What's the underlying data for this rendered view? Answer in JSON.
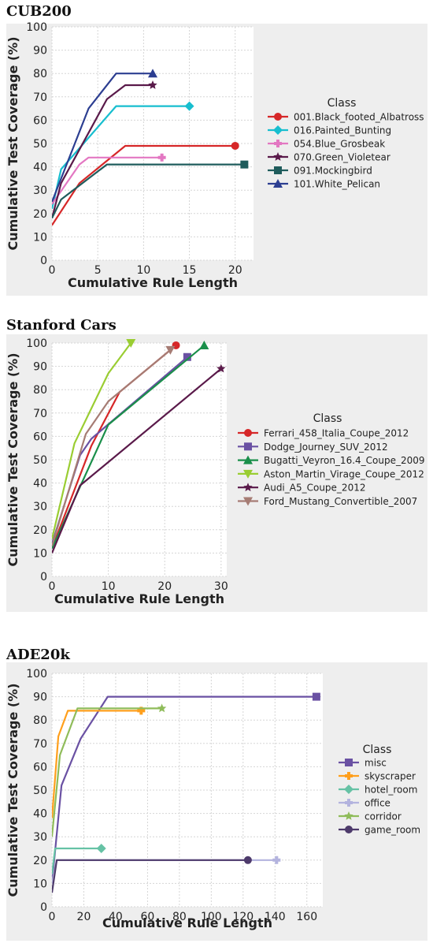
{
  "chart_data": [
    {
      "type": "line",
      "panel_title": "CUB200",
      "xlabel": "Cumulative Rule Length",
      "ylabel": "Cumulative Test Coverage (%)",
      "xlim": [
        0,
        22
      ],
      "ylim": [
        0,
        100
      ],
      "xticks": [
        0,
        5,
        10,
        15,
        20
      ],
      "yticks": [
        0,
        10,
        20,
        30,
        40,
        50,
        60,
        70,
        80,
        90,
        100
      ],
      "grid": true,
      "legend_title": "Class",
      "legend_position": "right",
      "series": [
        {
          "name": "001.Black_footed_Albatross",
          "color": "#d62728",
          "marker": "circle",
          "x": [
            0,
            3,
            8,
            20
          ],
          "y": [
            15,
            33,
            49,
            49
          ]
        },
        {
          "name": "016.Painted_Bunting",
          "color": "#17becf",
          "marker": "diamond",
          "x": [
            0,
            1,
            7,
            15
          ],
          "y": [
            22,
            39,
            66,
            66
          ]
        },
        {
          "name": "054.Blue_Grosbeak",
          "color": "#e377c2",
          "marker": "plus",
          "x": [
            0,
            3,
            4,
            12
          ],
          "y": [
            24,
            41,
            44,
            44
          ]
        },
        {
          "name": "070.Green_Violetear",
          "color": "#5a1a4a",
          "marker": "star",
          "x": [
            0,
            1,
            6,
            8,
            11
          ],
          "y": [
            18,
            33,
            69,
            75,
            75
          ]
        },
        {
          "name": "091.Mockingbird",
          "color": "#1f5c5c",
          "marker": "square",
          "x": [
            0,
            1,
            6,
            21
          ],
          "y": [
            18,
            26,
            41,
            41
          ]
        },
        {
          "name": "101.White_Pelican",
          "color": "#2c3e91",
          "marker": "triangle",
          "x": [
            0,
            4,
            7,
            11
          ],
          "y": [
            25,
            65,
            80,
            80
          ]
        }
      ]
    },
    {
      "type": "line",
      "panel_title": "Stanford Cars",
      "xlabel": "Cumulative Rule Length",
      "ylabel": "Cumulative Test Coverage (%)",
      "xlim": [
        0,
        31
      ],
      "ylim": [
        0,
        100
      ],
      "xticks": [
        0,
        10,
        20,
        30
      ],
      "yticks": [
        0,
        10,
        20,
        30,
        40,
        50,
        60,
        70,
        80,
        90,
        100
      ],
      "grid": true,
      "legend_title": "Class",
      "legend_position": "right",
      "series": [
        {
          "name": "Ferrari_458_Italia_Coupe_2012",
          "color": "#d62728",
          "marker": "circle",
          "x": [
            0,
            7,
            12,
            22
          ],
          "y": [
            12,
            56,
            79,
            99
          ]
        },
        {
          "name": "Dodge_Journey_SUV_2012",
          "color": "#6a51a3",
          "marker": "square",
          "x": [
            0,
            5,
            7,
            24
          ],
          "y": [
            14,
            52,
            59,
            94
          ]
        },
        {
          "name": "Bugatti_Veyron_16.4_Coupe_2009",
          "color": "#1a8f4a",
          "marker": "triangle",
          "x": [
            0,
            10,
            27
          ],
          "y": [
            12,
            65,
            99
          ]
        },
        {
          "name": "Aston_Martin_Virage_Coupe_2012",
          "color": "#9acd32",
          "marker": "tri_down",
          "x": [
            0,
            4,
            10,
            14
          ],
          "y": [
            16,
            57,
            87,
            100
          ]
        },
        {
          "name": "Audi_A5_Coupe_2012",
          "color": "#5a1a4a",
          "marker": "star",
          "x": [
            0,
            5,
            30
          ],
          "y": [
            10,
            39,
            89
          ]
        },
        {
          "name": "Ford_Mustang_Convertible_2007",
          "color": "#a67c74",
          "marker": "tri_down",
          "x": [
            0,
            6,
            10,
            21
          ],
          "y": [
            13,
            61,
            75,
            97
          ]
        }
      ]
    },
    {
      "type": "line",
      "panel_title": "ADE20k",
      "xlabel": "Cumulative Rule Length",
      "ylabel": "Cumulative Test Coverage (%)",
      "xlim": [
        0,
        170
      ],
      "ylim": [
        0,
        100
      ],
      "xticks": [
        0,
        20,
        40,
        60,
        80,
        100,
        120,
        140,
        160
      ],
      "yticks": [
        0,
        10,
        20,
        30,
        40,
        50,
        60,
        70,
        80,
        90,
        100
      ],
      "grid": true,
      "legend_title": "Class",
      "legend_position": "right",
      "series": [
        {
          "name": "misc",
          "color": "#6a51a3",
          "marker": "square",
          "x": [
            0,
            6,
            18,
            35,
            166
          ],
          "y": [
            10,
            52,
            72,
            90,
            90
          ]
        },
        {
          "name": "skyscraper",
          "color": "#ff9f1c",
          "marker": "plus",
          "x": [
            0,
            4,
            10,
            56
          ],
          "y": [
            38,
            73,
            84,
            84
          ]
        },
        {
          "name": "hotel_room",
          "color": "#66c2a5",
          "marker": "diamond",
          "x": [
            0,
            2,
            31
          ],
          "y": [
            14,
            25,
            25
          ]
        },
        {
          "name": "office",
          "color": "#b3b3de",
          "marker": "plus",
          "x": [
            0,
            3,
            141
          ],
          "y": [
            10,
            20,
            20
          ]
        },
        {
          "name": "corridor",
          "color": "#8fbc5a",
          "marker": "star",
          "x": [
            0,
            5,
            16,
            69
          ],
          "y": [
            30,
            65,
            85,
            85
          ]
        },
        {
          "name": "game_room",
          "color": "#4d3a6b",
          "marker": "circle",
          "x": [
            0,
            3,
            123
          ],
          "y": [
            6,
            20,
            20
          ]
        }
      ]
    }
  ]
}
